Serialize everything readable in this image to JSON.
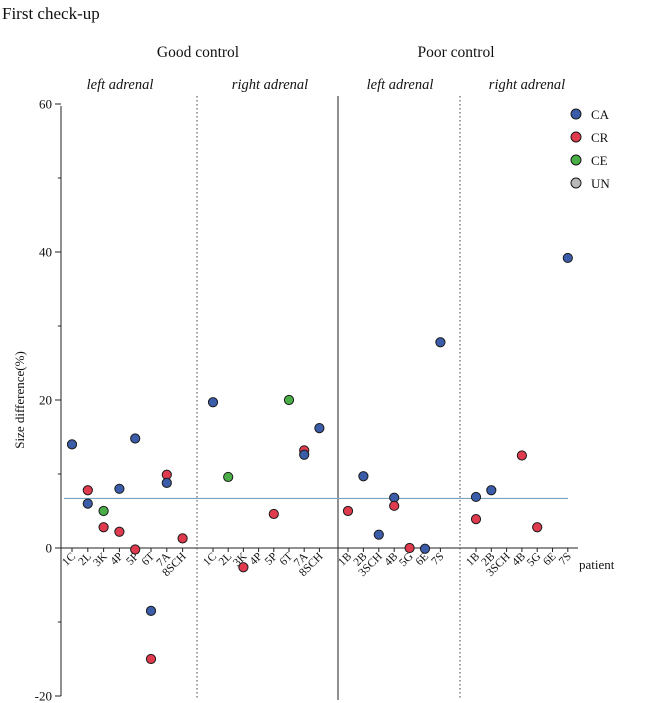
{
  "chart_data": {
    "type": "scatter",
    "title": "First check-up",
    "ylabel": "Size difference(%)",
    "xlabel": "patient",
    "ylim": [
      -20,
      60
    ],
    "yticks": [
      -20,
      0,
      20,
      40,
      60
    ],
    "reference_line": 6.7,
    "grid": false,
    "legend_position": "top-right",
    "legend": [
      {
        "key": "CA",
        "label": "CA",
        "color": "#3b5ca8"
      },
      {
        "key": "CR",
        "label": "CR",
        "color": "#e03a4e"
      },
      {
        "key": "CE",
        "label": "CE",
        "color": "#4aae46"
      },
      {
        "key": "UN",
        "label": "UN",
        "color": "#b8b8b8"
      }
    ],
    "groups": [
      {
        "label": "Good control",
        "panels": [
          {
            "label": "left adrenal",
            "patients": [
              "1C",
              "2L",
              "3K",
              "4P",
              "5P",
              "6T",
              "7A",
              "8SCH"
            ],
            "points": [
              {
                "patient": "1C",
                "y": 14,
                "cls": "CA"
              },
              {
                "patient": "2L",
                "y": 6,
                "cls": "CA"
              },
              {
                "patient": "2L",
                "y": 7.8,
                "cls": "CR"
              },
              {
                "patient": "3K",
                "y": 2.8,
                "cls": "CR"
              },
              {
                "patient": "3K",
                "y": 5,
                "cls": "CE"
              },
              {
                "patient": "4P",
                "y": 8,
                "cls": "CA"
              },
              {
                "patient": "4P",
                "y": 2.2,
                "cls": "CR"
              },
              {
                "patient": "5P",
                "y": 14.8,
                "cls": "CA"
              },
              {
                "patient": "5P",
                "y": -0.2,
                "cls": "CR"
              },
              {
                "patient": "6T",
                "y": -8.5,
                "cls": "CA"
              },
              {
                "patient": "6T",
                "y": -15,
                "cls": "CR"
              },
              {
                "patient": "7A",
                "y": 9.9,
                "cls": "CR"
              },
              {
                "patient": "7A",
                "y": 8.8,
                "cls": "CA"
              },
              {
                "patient": "8SCH",
                "y": 1.3,
                "cls": "CR"
              }
            ]
          },
          {
            "label": "right adrenal",
            "patients": [
              "1C",
              "2L",
              "3K",
              "4P",
              "5P",
              "6T",
              "7A",
              "8SCH"
            ],
            "points": [
              {
                "patient": "1C",
                "y": 19.7,
                "cls": "CA"
              },
              {
                "patient": "2L",
                "y": 9.6,
                "cls": "CE"
              },
              {
                "patient": "3K",
                "y": -2.6,
                "cls": "CR"
              },
              {
                "patient": "5P",
                "y": 4.6,
                "cls": "CR"
              },
              {
                "patient": "6T",
                "y": 20,
                "cls": "CE"
              },
              {
                "patient": "7A",
                "y": 13.2,
                "cls": "CR"
              },
              {
                "patient": "7A",
                "y": 12.6,
                "cls": "CA"
              },
              {
                "patient": "8SCH",
                "y": 16.2,
                "cls": "CA"
              }
            ]
          }
        ]
      },
      {
        "label": "Poor control",
        "panels": [
          {
            "label": "left adrenal",
            "patients": [
              "1B",
              "2B",
              "3SCH",
              "4B",
              "5G",
              "6E",
              "7S"
            ],
            "points": [
              {
                "patient": "1B",
                "y": 5,
                "cls": "CR"
              },
              {
                "patient": "2B",
                "y": 9.7,
                "cls": "CA"
              },
              {
                "patient": "3SCH",
                "y": 1.8,
                "cls": "CA"
              },
              {
                "patient": "4B",
                "y": 6.8,
                "cls": "CA"
              },
              {
                "patient": "4B",
                "y": 5.7,
                "cls": "CR"
              },
              {
                "patient": "5G",
                "y": 0,
                "cls": "CR"
              },
              {
                "patient": "6E",
                "y": -0.1,
                "cls": "CA"
              },
              {
                "patient": "7S",
                "y": 27.8,
                "cls": "CA"
              }
            ]
          },
          {
            "label": "right adrenal",
            "patients": [
              "1B",
              "2B",
              "3SCH",
              "4B",
              "5G",
              "6E",
              "7S"
            ],
            "points": [
              {
                "patient": "1B",
                "y": 6.9,
                "cls": "CA"
              },
              {
                "patient": "1B",
                "y": 3.9,
                "cls": "CR"
              },
              {
                "patient": "2B",
                "y": 7.8,
                "cls": "CA"
              },
              {
                "patient": "4B",
                "y": 12.5,
                "cls": "CR"
              },
              {
                "patient": "5G",
                "y": 2.8,
                "cls": "CR"
              },
              {
                "patient": "7S",
                "y": 39.2,
                "cls": "CA"
              }
            ]
          }
        ]
      }
    ]
  }
}
